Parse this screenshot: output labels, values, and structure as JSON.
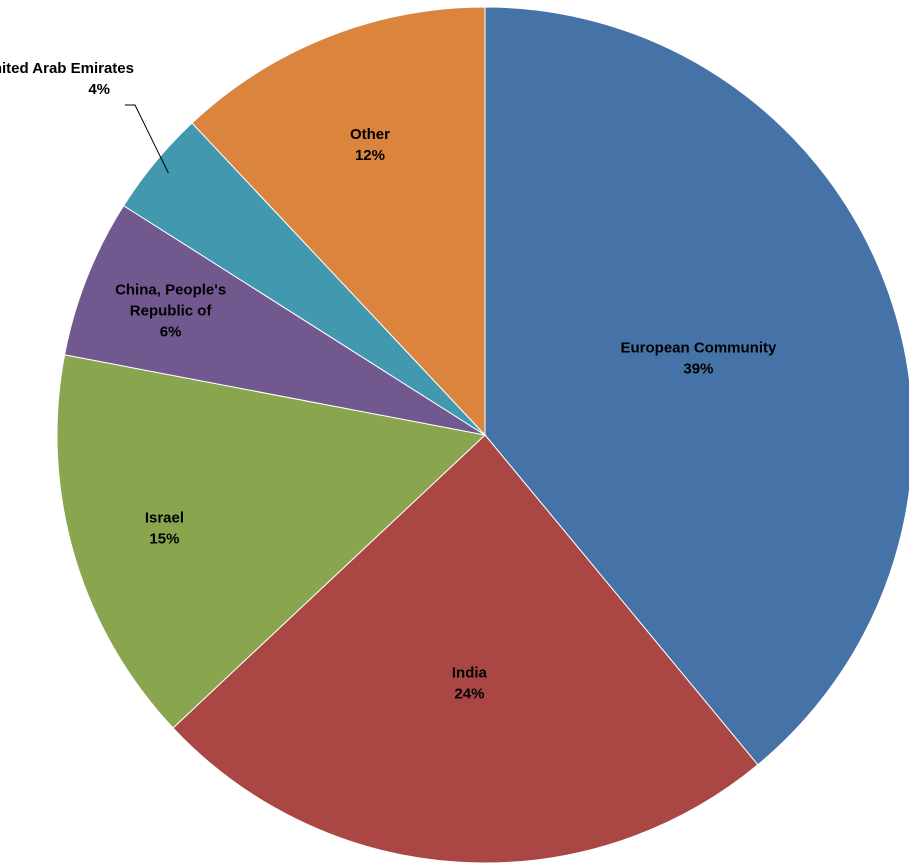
{
  "chart_data": {
    "type": "pie",
    "title": "",
    "start": "12 o'clock",
    "direction": "clockwise",
    "slices": [
      {
        "name": "European Community",
        "value": 39,
        "label": "39%",
        "color": "#4572A7",
        "label_lines": [
          "European Community",
          "39%"
        ]
      },
      {
        "name": "India",
        "value": 24,
        "label": "24%",
        "color": "#AA4643",
        "label_lines": [
          "India",
          "24%"
        ]
      },
      {
        "name": "Israel",
        "value": 15,
        "label": "15%",
        "color": "#89A54E",
        "label_lines": [
          "Israel",
          "15%"
        ]
      },
      {
        "name": "China, People's Republic of",
        "value": 6,
        "label": "6%",
        "color": "#71588F",
        "label_lines": [
          "China, People's",
          "Republic of",
          "6%"
        ]
      },
      {
        "name": "United Arab Emirates",
        "value": 4,
        "label": "4%",
        "color": "#4198AF",
        "label_lines": [
          "United Arab Emirates",
          "4%"
        ],
        "label_outside": true
      },
      {
        "name": "Other",
        "value": 12,
        "label": "12%",
        "color": "#DB843D",
        "label_lines": [
          "Other",
          "12%"
        ]
      }
    ]
  }
}
